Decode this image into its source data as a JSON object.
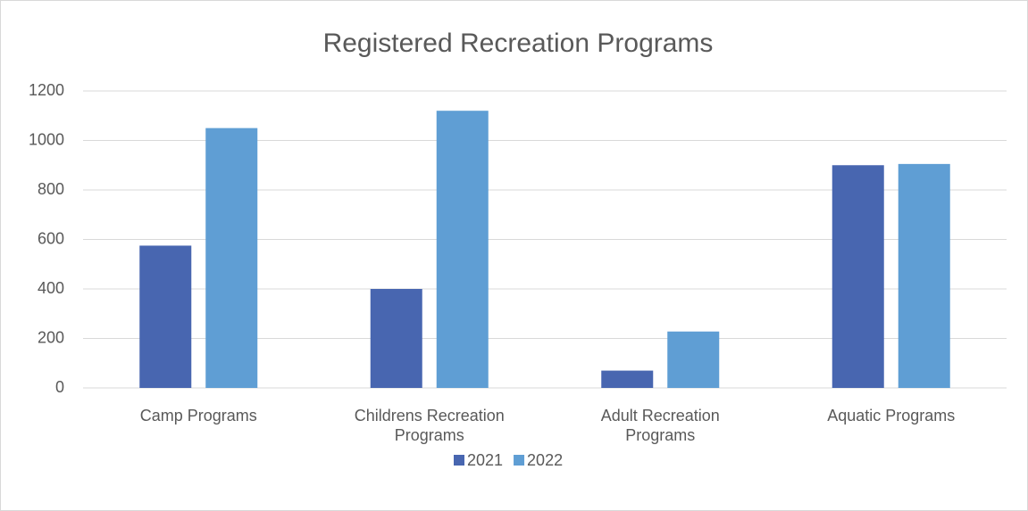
{
  "chart_data": {
    "type": "bar",
    "title": "Registered Recreation Programs",
    "categories": [
      "Camp Programs",
      "Childrens Recreation Programs",
      "Adult Recreation Programs",
      "Aquatic Programs"
    ],
    "series": [
      {
        "name": "2021",
        "color": "#4866b0",
        "values": [
          575,
          400,
          70,
          900
        ]
      },
      {
        "name": "2022",
        "color": "#5f9ed4",
        "values": [
          1050,
          1120,
          228,
          905
        ]
      }
    ],
    "ylim": [
      0,
      1200
    ],
    "yticks": [
      0,
      200,
      400,
      600,
      800,
      1000,
      1200
    ],
    "grid": true,
    "legend": "bottom"
  }
}
